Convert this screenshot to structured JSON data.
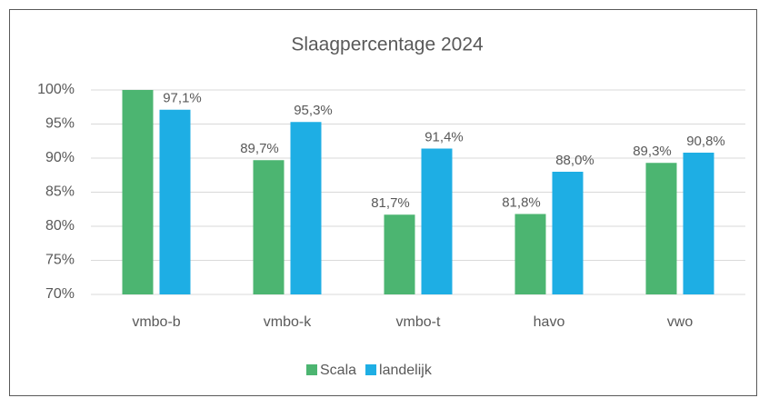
{
  "chart_data": {
    "type": "bar",
    "title": "Slaagpercentage 2024",
    "categories": [
      "vmbo-b",
      "vmbo-k",
      "vmbo-t",
      "havo",
      "vwo"
    ],
    "series": [
      {
        "name": "Scala",
        "color": "#4cb571",
        "values": [
          100,
          89.7,
          81.7,
          81.8,
          89.3
        ],
        "value_labels": [
          null,
          "89,7%",
          "81,7%",
          "81,8%",
          "89,3%"
        ]
      },
      {
        "name": "landelijk",
        "color": "#1eaee4",
        "values": [
          97.1,
          95.3,
          91.4,
          88.0,
          90.8
        ],
        "value_labels": [
          "97,1%",
          "95,3%",
          "91,4%",
          "88,0%",
          "90,8%"
        ]
      }
    ],
    "ylim": [
      70,
      100
    ],
    "yticks": [
      {
        "value": 70,
        "label": "70%"
      },
      {
        "value": 75,
        "label": "75%"
      },
      {
        "value": 80,
        "label": "80%"
      },
      {
        "value": 85,
        "label": "85%"
      },
      {
        "value": 90,
        "label": "90%"
      },
      {
        "value": 95,
        "label": "95%"
      },
      {
        "value": 100,
        "label": "100%"
      }
    ],
    "grid": true,
    "legend": "bottom"
  }
}
